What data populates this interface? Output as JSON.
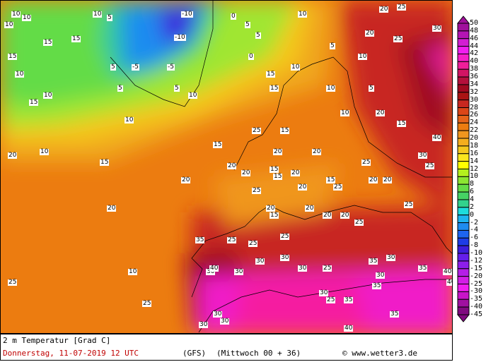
{
  "map": {
    "title": "2 m Temperatur [Grad C]",
    "valid_time": "Donnerstag, 11-07-2019  12 UTC",
    "model": "(GFS)",
    "run": "(Mittwoch 00 + 36)",
    "copyright": "© www.wetter3.de",
    "labels": [
      "10",
      "10",
      "10",
      "15",
      "10",
      "5",
      "0",
      "-10",
      "5",
      "5",
      "0",
      "10",
      "20",
      "25",
      "20",
      "25",
      "30",
      "10",
      "-10",
      "5",
      "15",
      "15",
      "10",
      "5",
      "-5",
      "-5",
      "5",
      "10",
      "10",
      "15",
      "10",
      "15",
      "10",
      "5",
      "5",
      "10",
      "15",
      "15",
      "20",
      "15",
      "25",
      "10",
      "15",
      "20",
      "20",
      "20",
      "20",
      "25",
      "25",
      "20",
      "25",
      "15",
      "20",
      "20",
      "20",
      "15",
      "20",
      "25",
      "25",
      "15",
      "20",
      "20",
      "30",
      "25",
      "20",
      "25",
      "25",
      "30",
      "25",
      "30",
      "30",
      "25",
      "35",
      "30",
      "30",
      "30",
      "30",
      "35",
      "40",
      "30",
      "25",
      "35",
      "35",
      "35",
      "40",
      "40",
      "35",
      "40",
      "20",
      "25",
      "20",
      "15",
      "10",
      "10",
      "20",
      "15",
      "25",
      "30",
      "40",
      "30",
      "30"
    ]
  },
  "legend": {
    "labels": [
      "50",
      "48",
      "46",
      "44",
      "42",
      "40",
      "38",
      "36",
      "34",
      "32",
      "30",
      "28",
      "26",
      "24",
      "22",
      "20",
      "18",
      "16",
      "14",
      "12",
      "10",
      "8",
      "6",
      "4",
      "2",
      "0",
      "-2",
      "-4",
      "-6",
      "-8",
      "-10",
      "-12",
      "-15",
      "-20",
      "-25",
      "-30",
      "-35",
      "-40",
      "-45"
    ],
    "colors": [
      "#a0109c",
      "#b414b4",
      "#d21ed2",
      "#f01ef0",
      "#f51ec8",
      "#f01e9a",
      "#d21464",
      "#b4103c",
      "#a00a20",
      "#aa1414",
      "#c82820",
      "#dc4618",
      "#e6641a",
      "#ec7c10",
      "#f0961e",
      "#f5ae1e",
      "#f5c81e",
      "#fae61e",
      "#ffff00",
      "#b4f01e",
      "#8ce632",
      "#64dc46",
      "#46d264",
      "#32d28c",
      "#1edcdc",
      "#1eb4f0",
      "#1e8cf0",
      "#1e64f0",
      "#1e3ce6",
      "#3c1edc",
      "#641eeb",
      "#8c1eeb",
      "#b41ee6",
      "#d21ee6",
      "#f01ef0",
      "#c814c8",
      "#a010a0",
      "#800a80"
    ]
  }
}
